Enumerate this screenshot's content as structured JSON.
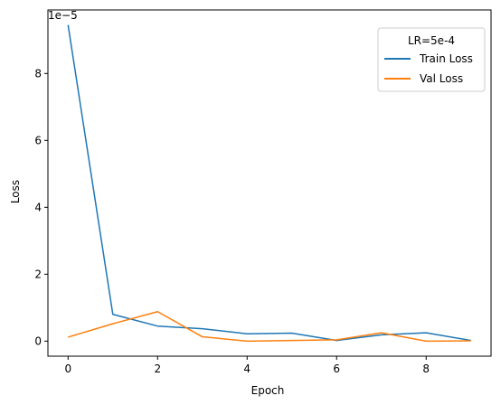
{
  "chart_data": {
    "type": "line",
    "xlabel": "Epoch",
    "ylabel": "Loss",
    "scale_label": "1e−5",
    "xlim": [
      -0.45,
      9.45
    ],
    "ylim": [
      -0.45,
      9.9
    ],
    "x_ticks": [
      0,
      2,
      4,
      6,
      8
    ],
    "y_ticks": [
      0,
      2,
      4,
      6,
      8
    ],
    "grid": false,
    "legend": {
      "title": "LR=5e-4",
      "placement": "top-right"
    },
    "x": [
      0,
      1,
      2,
      3,
      4,
      5,
      6,
      7,
      8,
      9
    ],
    "series": [
      {
        "name": "Train Loss",
        "color": "#1f77b4",
        "values": [
          9.45,
          0.8,
          0.45,
          0.37,
          0.22,
          0.24,
          0.02,
          0.19,
          0.25,
          0.02
        ]
      },
      {
        "name": "Val Loss",
        "color": "#ff7f0e",
        "values": [
          0.12,
          0.52,
          0.88,
          0.13,
          0.0,
          0.02,
          0.04,
          0.25,
          0.0,
          0.01
        ]
      }
    ]
  }
}
